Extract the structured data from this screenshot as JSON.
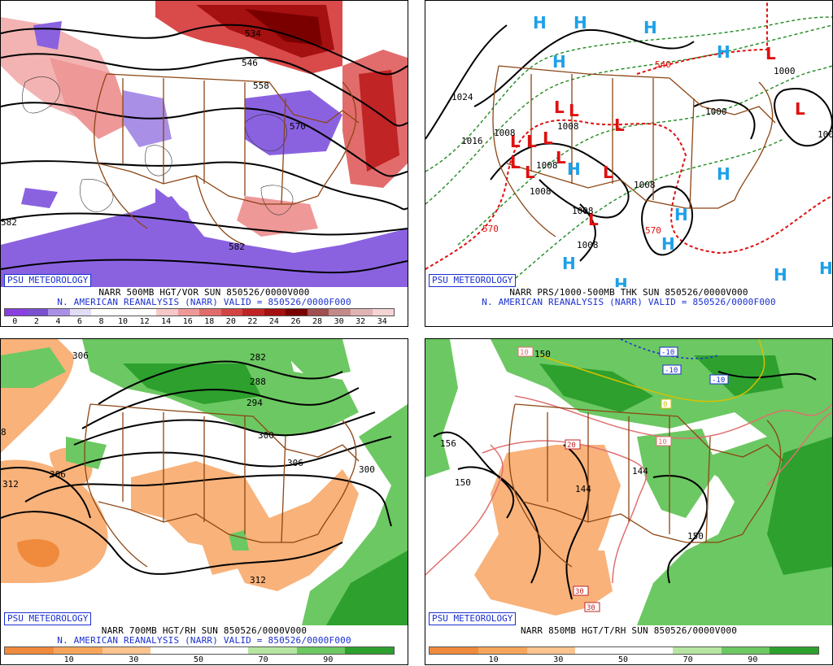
{
  "panels": [
    {
      "id": "p1",
      "tag": "PSU METEOROLOGY",
      "caption_line1": "NARR 500MB HGT/VOR SUN 850526/0000V000",
      "caption_line2": "N. AMERICAN REANALYSIS (NARR) VALID = 850526/0000F000",
      "colorbar_colors": [
        "#8a3fe0",
        "#7a50d0",
        "#a98fe6",
        "#e3dcf6",
        "#ffffff",
        "#ffffff",
        "#ffffff",
        "#f7c8c8",
        "#ef9898",
        "#e26c6c",
        "#d54444",
        "#c02424",
        "#a51010",
        "#7a0000",
        "#a05050",
        "#c48a8a",
        "#e0b4b4",
        "#f4d4d4"
      ],
      "colorbar_ticks": [
        "0",
        "2",
        "4",
        "6",
        "8",
        "10",
        "12",
        "14",
        "16",
        "18",
        "20",
        "22",
        "24",
        "26",
        "28",
        "30",
        "32",
        "34"
      ],
      "labels": [
        "534",
        "546",
        "558",
        "570",
        "582",
        "582"
      ]
    },
    {
      "id": "p2",
      "tag": "PSU METEOROLOGY",
      "caption_line1": "NARR PRS/1000-500MB THK SUN 850526/0000V000",
      "caption_line2": "N. AMERICAN REANALYSIS (NARR) VALID = 850526/0000F000",
      "labels": [
        "1024",
        "1016",
        "1008",
        "1008",
        "1008",
        "1008",
        "1008",
        "1008",
        "1008",
        "1000",
        "1000",
        "540",
        "570",
        "570",
        "100"
      ],
      "high_symbol": "H",
      "low_symbol": "L"
    },
    {
      "id": "p3",
      "tag": "PSU METEOROLOGY",
      "caption_line1": "NARR 700MB HGT/RH SUN 850526/0000V000",
      "caption_line2": "N. AMERICAN REANALYSIS (NARR) VALID = 850526/0000F000",
      "colorbar_colors": [
        "#f08a3c",
        "#f6a55c",
        "#fbc48e",
        "#ffffff",
        "#ffffff",
        "#b6e6a2",
        "#6cc862",
        "#2da02e"
      ],
      "colorbar_ticks": [
        "10",
        "30",
        "50",
        "70",
        "90"
      ],
      "labels": [
        "282",
        "288",
        "294",
        "300",
        "306",
        "306",
        "300",
        "312",
        "312",
        "306",
        "8"
      ]
    },
    {
      "id": "p4",
      "tag": "PSU METEOROLOGY",
      "caption_line1": "NARR 850MB HGT/T/RH SUN 850526/0000V000",
      "caption_line2": "",
      "colorbar_colors": [
        "#f08a3c",
        "#f6a55c",
        "#fbc48e",
        "#ffffff",
        "#ffffff",
        "#b6e6a2",
        "#6cc862",
        "#2da02e"
      ],
      "colorbar_ticks": [
        "10",
        "30",
        "50",
        "70",
        "90"
      ],
      "labels": [
        "156",
        "150",
        "144",
        "144",
        "150",
        "150"
      ],
      "temp_labels": [
        "10",
        "-10",
        "-10",
        "-10",
        "0",
        "10",
        "20",
        "30",
        "30"
      ]
    }
  ]
}
